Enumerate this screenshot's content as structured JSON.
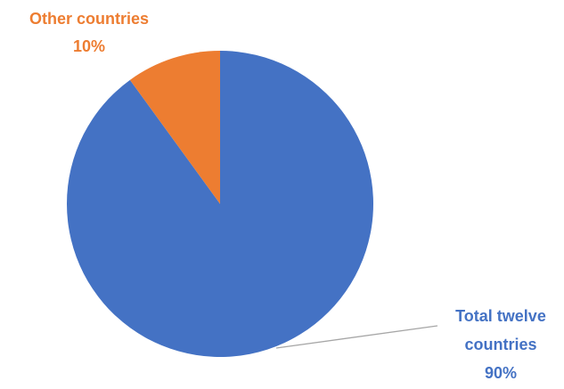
{
  "chart_data": {
    "type": "pie",
    "start_angle_deg": 0,
    "direction": "clockwise",
    "slices": [
      {
        "label_lines": [
          "Total twelve",
          "countries"
        ],
        "percent_label": "90%",
        "value": 90,
        "color": "#4472C4"
      },
      {
        "label_lines": [
          "Other countries"
        ],
        "percent_label": "10%",
        "value": 10,
        "color": "#ED7D31"
      }
    ],
    "leader_line_color": "#A6A6A6"
  }
}
